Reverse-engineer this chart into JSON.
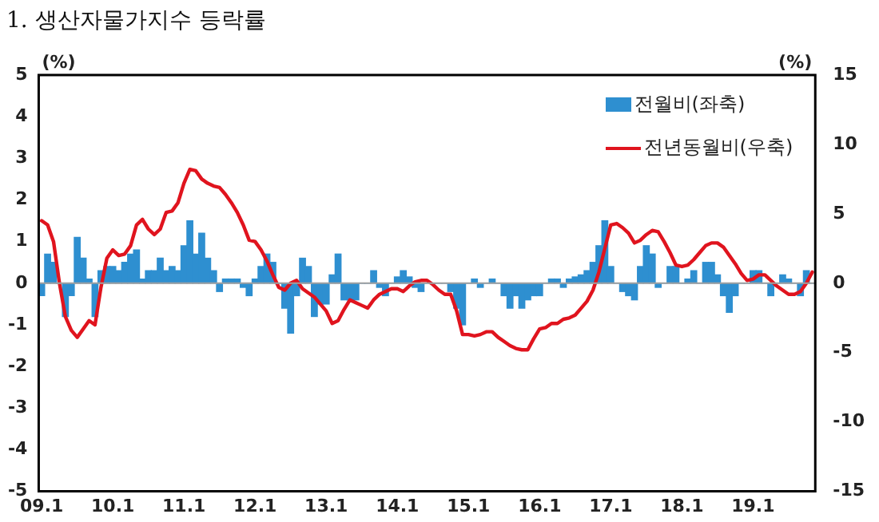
{
  "chart_data": {
    "type": "bar",
    "title": "1. 생산자물가지수 등락률",
    "ylabel": "(%)",
    "y2label": "(%)",
    "categories": [
      "09.1",
      null,
      null,
      null,
      null,
      null,
      null,
      null,
      null,
      null,
      null,
      null,
      "10.1",
      null,
      null,
      null,
      null,
      null,
      null,
      null,
      null,
      null,
      null,
      null,
      "11.1",
      null,
      null,
      null,
      null,
      null,
      null,
      null,
      null,
      null,
      null,
      null,
      "12.1",
      null,
      null,
      null,
      null,
      null,
      null,
      null,
      null,
      null,
      null,
      null,
      "13.1",
      null,
      null,
      null,
      null,
      null,
      null,
      null,
      null,
      null,
      null,
      null,
      "14.1",
      null,
      null,
      null,
      null,
      null,
      null,
      null,
      null,
      null,
      null,
      null,
      "15.1",
      null,
      null,
      null,
      null,
      null,
      null,
      null,
      null,
      null,
      null,
      null,
      "16.1",
      null,
      null,
      null,
      null,
      null,
      null,
      null,
      null,
      null,
      null,
      null,
      "17.1",
      null,
      null,
      null,
      null,
      null,
      null,
      null,
      null,
      null,
      null,
      null,
      "18.1",
      null,
      null,
      null,
      null,
      null,
      null,
      null,
      null,
      null,
      null,
      null,
      "19.1",
      null,
      null,
      null,
      null,
      null,
      null,
      null,
      null,
      null,
      null
    ],
    "series": [
      {
        "name": "전월비(좌축)",
        "color": "#2e8fd0",
        "values": [
          -0.3,
          0.7,
          0.5,
          0.0,
          -0.8,
          -0.3,
          1.1,
          0.6,
          0.1,
          -0.8,
          0.3,
          0.4,
          0.4,
          0.3,
          0.5,
          0.7,
          0.8,
          0.1,
          0.3,
          0.3,
          0.6,
          0.3,
          0.4,
          0.3,
          0.9,
          1.5,
          0.7,
          1.2,
          0.6,
          0.3,
          -0.2,
          0.1,
          0.1,
          0.1,
          -0.1,
          -0.3,
          0.1,
          0.4,
          0.7,
          0.5,
          0.0,
          -0.6,
          -1.2,
          -0.3,
          0.6,
          0.4,
          -0.8,
          -0.5,
          -0.5,
          0.2,
          0.7,
          -0.4,
          -0.4,
          -0.4,
          0.0,
          0.0,
          0.3,
          -0.1,
          -0.3,
          0.0,
          0.15,
          0.3,
          0.15,
          -0.1,
          -0.2,
          0.0,
          0.0,
          0.0,
          0.0,
          -0.2,
          -0.6,
          -1.0,
          0.0,
          0.1,
          -0.1,
          0.0,
          0.1,
          0.0,
          -0.3,
          -0.6,
          -0.3,
          -0.6,
          -0.4,
          -0.3,
          -0.3,
          0.0,
          0.1,
          0.1,
          -0.1,
          0.1,
          0.15,
          0.2,
          0.3,
          0.5,
          0.9,
          1.5,
          0.4,
          0.0,
          -0.2,
          -0.3,
          -0.4,
          0.4,
          0.9,
          0.7,
          -0.1,
          0.0,
          0.4,
          0.4,
          0.0,
          0.1,
          0.3,
          0.0,
          0.5,
          0.5,
          0.2,
          -0.3,
          -0.7,
          -0.3,
          0.0,
          0.0,
          0.3,
          0.3,
          0.0,
          -0.3,
          0.0,
          0.2,
          0.1,
          0.0,
          -0.3,
          0.3,
          0.0
        ]
      },
      {
        "name": "전년동월비(우축)",
        "type": "line",
        "axis": "y2",
        "color": "#e0141e",
        "values": [
          4.5,
          4.2,
          3.0,
          0,
          -2.4,
          -3.4,
          -3.9,
          -3.3,
          -2.7,
          -3.0,
          -0.3,
          1.8,
          2.4,
          2.0,
          2.1,
          2.7,
          4.2,
          4.6,
          3.9,
          3.5,
          3.9,
          5.1,
          5.2,
          5.8,
          7.2,
          8.2,
          8.1,
          7.5,
          7.2,
          7.0,
          6.9,
          6.4,
          5.8,
          5.1,
          4.2,
          3.1,
          3.0,
          2.4,
          1.6,
          0.6,
          -0.3,
          -0.5,
          0.0,
          0.2,
          -0.4,
          -0.7,
          -1.0,
          -1.5,
          -2.0,
          -2.9,
          -2.7,
          -1.9,
          -1.2,
          -1.4,
          -1.6,
          -1.8,
          -1.2,
          -0.8,
          -0.6,
          -0.4,
          -0.4,
          -0.6,
          -0.2,
          0.1,
          0.2,
          0.2,
          -0.1,
          -0.5,
          -0.8,
          -0.8,
          -2.0,
          -3.7,
          -3.7,
          -3.8,
          -3.7,
          -3.5,
          -3.5,
          -3.9,
          -4.2,
          -4.5,
          -4.7,
          -4.8,
          -4.8,
          -4.0,
          -3.3,
          -3.2,
          -2.9,
          -2.9,
          -2.6,
          -2.5,
          -2.3,
          -1.8,
          -1.3,
          -0.5,
          0.8,
          2.5,
          4.2,
          4.3,
          4.0,
          3.6,
          2.9,
          3.1,
          3.5,
          3.8,
          3.7,
          3.0,
          2.2,
          1.3,
          1.2,
          1.3,
          1.7,
          2.2,
          2.7,
          2.9,
          2.9,
          2.6,
          2.0,
          1.4,
          0.7,
          0.2,
          0.3,
          0.6,
          0.6,
          0.2,
          -0.2,
          -0.5,
          -0.8,
          -0.8,
          -0.6,
          0.0,
          0.8
        ]
      }
    ],
    "ylim": [
      -5,
      5
    ],
    "yticks": [
      -5,
      -4,
      -3,
      -2,
      -1,
      0,
      1,
      2,
      3,
      4,
      5
    ],
    "y2lim": [
      -15,
      15
    ],
    "y2ticks": [
      -15,
      -10,
      -5,
      0,
      5,
      10,
      15
    ],
    "ref_lines": [
      {
        "axis": "y",
        "value": 0,
        "color": "#a0a0a0"
      }
    ],
    "grid": false,
    "legend": "top right",
    "marker": "none",
    "line_style": "solid"
  }
}
